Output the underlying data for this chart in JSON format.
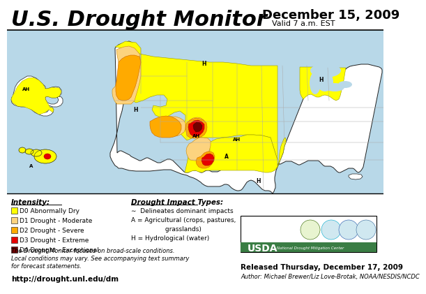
{
  "title": "U.S. Drought Monitor",
  "date_line1": "December 15, 2009",
  "date_line2": "Valid 7 a.m. EST",
  "released_line": "Released Thursday, December 17, 2009",
  "author_line": "Author: Michael Brewer/Liz Love-Brotak, NOAA/NESDIS/NCDC",
  "url": "http://drought.unl.edu/dm",
  "bg_color": "#ffffff",
  "intensity_label": "Intensity:",
  "legend_items": [
    {
      "label": "D0 Abnormally Dry",
      "color": "#FFFF00"
    },
    {
      "label": "D1 Drought - Moderate",
      "color": "#FCD37F"
    },
    {
      "label": "D2 Drought - Severe",
      "color": "#FFAA00"
    },
    {
      "label": "D3 Drought - Extreme",
      "color": "#E60000"
    },
    {
      "label": "D4 Drought - Exceptional",
      "color": "#730000"
    }
  ],
  "impact_title": "Drought Impact Types:",
  "impact_items": [
    "• Delineates dominant impacts",
    "A = Agricultural (crops, pastures,",
    "                 grasslands)",
    "H = Hydrological (water)"
  ],
  "disclaimer": "The Drought Monitor focuses on broad-scale conditions.\nLocal conditions may vary. See accompanying text summary\nfor forecast statements.",
  "map_water_color": "#b8d8e8",
  "map_land_color": "#ffffff",
  "title_fontsize": 22,
  "date1_fontsize": 13,
  "date2_fontsize": 8
}
